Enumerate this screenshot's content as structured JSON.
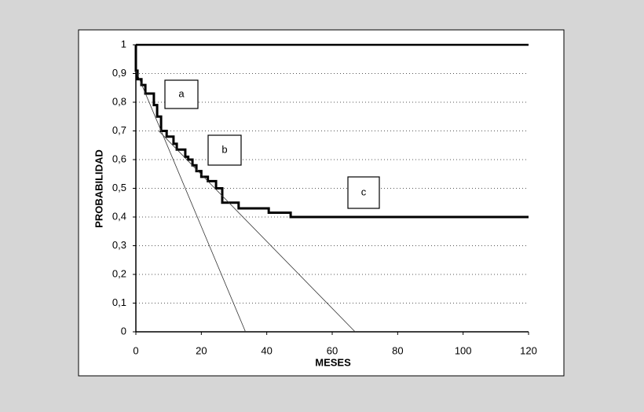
{
  "chart_data": {
    "type": "line",
    "xlabel": "MESES",
    "ylabel": "PROBABILIDAD",
    "xlim": [
      0,
      120
    ],
    "ylim": [
      0,
      1
    ],
    "xticks": [
      0,
      20,
      40,
      60,
      80,
      100,
      120
    ],
    "yticks": [
      0,
      {
        "value": 0.1,
        "label": "0,1"
      },
      {
        "value": 0.2,
        "label": "0,2"
      },
      {
        "value": 0.3,
        "label": "0,3"
      },
      {
        "value": 0.4,
        "label": "0,4"
      },
      {
        "value": 0.5,
        "label": "0,5"
      },
      {
        "value": 0.6,
        "label": "0,6"
      },
      {
        "value": 0.7,
        "label": "0,7"
      },
      {
        "value": 0.8,
        "label": "0,8"
      },
      {
        "value": 0.9,
        "label": "0,9"
      },
      1
    ],
    "grid": true,
    "series": [
      {
        "color": "#000000",
        "step": true,
        "x": [
          0,
          0,
          0.5,
          1.7,
          2.9,
          5.5,
          6.5,
          7.7,
          9.4,
          11.5,
          12.5,
          15.1,
          16,
          17.3,
          18.5,
          20,
          22,
          24.5,
          26.4,
          31.4,
          40.6,
          47.3,
          120
        ],
        "values": [
          1,
          0.91,
          0.88,
          0.86,
          0.83,
          0.79,
          0.75,
          0.7,
          0.68,
          0.655,
          0.635,
          0.61,
          0.6,
          0.58,
          0.56,
          0.54,
          0.525,
          0.5,
          0.45,
          0.43,
          0.415,
          0.4,
          0.4
        ]
      },
      {
        "color": "#333333",
        "x": [
          0,
          33.5
        ],
        "values": [
          0.91,
          0
        ]
      },
      {
        "color": "#333333",
        "x": [
          7,
          67
        ],
        "values": [
          0.7,
          0
        ]
      }
    ],
    "annotations": [
      "a",
      "b",
      "c"
    ]
  }
}
